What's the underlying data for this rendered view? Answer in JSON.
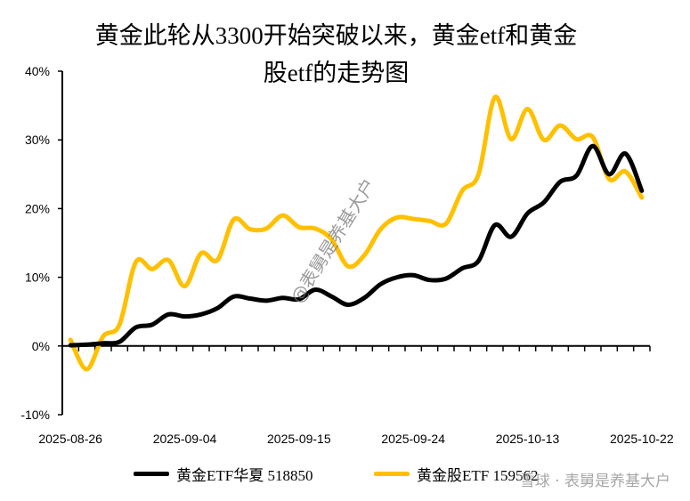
{
  "chart_data": {
    "type": "line",
    "title_line1": "黄金此轮从3300开始突破以来，黄金etf和黄金",
    "title_line2": "股etf的走势图",
    "ylim": [
      -10,
      40
    ],
    "yticks": [
      "-10%",
      "0%",
      "10%",
      "20%",
      "30%",
      "40%"
    ],
    "ytick_values": [
      -10,
      0,
      10,
      20,
      30,
      40
    ],
    "x": [
      "2025-08-26",
      "2025-08-27",
      "2025-08-28",
      "2025-08-29",
      "2025-09-01",
      "2025-09-02",
      "2025-09-03",
      "2025-09-04",
      "2025-09-05",
      "2025-09-08",
      "2025-09-09",
      "2025-09-10",
      "2025-09-11",
      "2025-09-12",
      "2025-09-15",
      "2025-09-16",
      "2025-09-17",
      "2025-09-18",
      "2025-09-19",
      "2025-09-22",
      "2025-09-23",
      "2025-09-24",
      "2025-09-25",
      "2025-09-26",
      "2025-09-29",
      "2025-09-30",
      "2025-10-09",
      "2025-10-10",
      "2025-10-13",
      "2025-10-14",
      "2025-10-15",
      "2025-10-16",
      "2025-10-17",
      "2025-10-20",
      "2025-10-21",
      "2025-10-22"
    ],
    "xtick_labels": [
      "2025-08-26",
      "2025-09-04",
      "2025-09-15",
      "2025-09-24",
      "2025-10-13",
      "2025-10-22"
    ],
    "series": [
      {
        "name": "黄金ETF华夏 518850",
        "color": "#000000",
        "values": [
          0.1,
          0.2,
          0.4,
          0.6,
          2.7,
          3.1,
          4.6,
          4.3,
          4.6,
          5.5,
          7.2,
          6.9,
          6.6,
          7.0,
          6.8,
          8.2,
          7.2,
          6.0,
          7.0,
          9.0,
          10.0,
          10.3,
          9.6,
          9.8,
          11.3,
          12.4,
          17.6,
          15.9,
          19.3,
          20.9,
          23.9,
          24.8,
          29.1,
          25.0,
          28.0,
          22.6
        ]
      },
      {
        "name": "黄金股ETF 159562",
        "color": "#FFC000",
        "values": [
          0.9,
          -3.4,
          1.4,
          3.1,
          12.2,
          11.2,
          12.5,
          8.7,
          13.5,
          12.5,
          18.4,
          17.0,
          17.1,
          19.0,
          17.3,
          17.1,
          15.5,
          11.6,
          13.2,
          17.0,
          18.7,
          18.5,
          18.2,
          17.8,
          22.6,
          25.0,
          36.2,
          30.1,
          34.5,
          30.0,
          32.1,
          30.1,
          30.4,
          24.3,
          25.4,
          21.6
        ]
      }
    ],
    "legend": "bottom"
  },
  "watermark": "@表舅是养基大户",
  "footer_watermark": "雪球 · 表舅是养基大户"
}
